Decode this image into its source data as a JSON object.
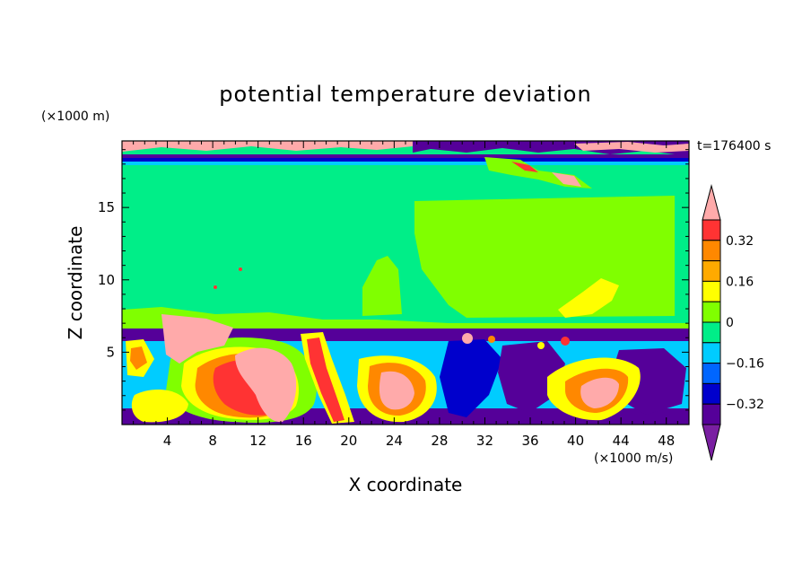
{
  "chart_data": {
    "type": "heatmap",
    "title": "potential temperature deviation",
    "xlabel": "X coordinate",
    "ylabel": "Z coordinate",
    "x_unit": "(×1000 m/s)",
    "y_unit": "(×1000 m)",
    "time_label": "t=176400 s",
    "xlim": [
      0,
      50
    ],
    "ylim": [
      0,
      19.6
    ],
    "x_ticks": [
      4,
      8,
      12,
      16,
      20,
      24,
      28,
      32,
      36,
      40,
      44,
      48
    ],
    "y_ticks": [
      5,
      10,
      15
    ],
    "colorbar": {
      "labels": [
        "0.32",
        "0.16",
        "0",
        "−0.16",
        "−0.32"
      ],
      "label_values": [
        0.32,
        0.16,
        0,
        -0.16,
        -0.32
      ],
      "levels": [
        0.4,
        0.32,
        0.24,
        0.16,
        0.08,
        0,
        -0.08,
        -0.16,
        -0.24,
        -0.32,
        -0.4
      ],
      "colors": [
        "#ff3333",
        "#ff8800",
        "#ffaa00",
        "#ffff00",
        "#80ff00",
        "#00ee88",
        "#00ccff",
        "#0066ff",
        "#0000cc",
        "#550099"
      ],
      "over_color": "#ffaaaa",
      "under_color": "#7a1fa2"
    }
  }
}
